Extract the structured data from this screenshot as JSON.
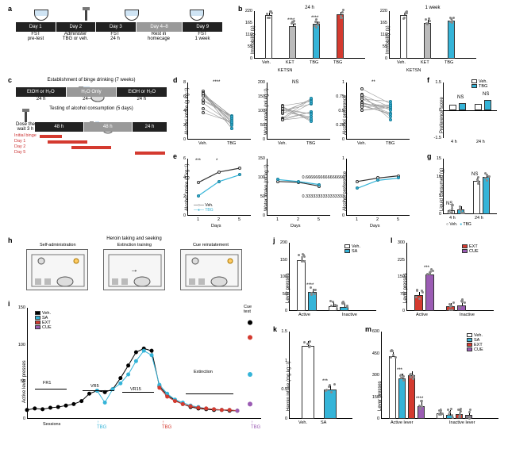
{
  "colors": {
    "vehicle": "#ffffff",
    "grey": "#bbbbbb",
    "tbg": "#35b4d8",
    "ket": "#bbbbbb",
    "red": "#d43a2f",
    "purple": "#9b5cb4",
    "black": "#000000",
    "sa_cyan": "#35b4d8"
  },
  "panel_a": {
    "label": "a",
    "timeline": [
      {
        "day": "Day 1",
        "caption": "FST\npre-test",
        "icon": "cup"
      },
      {
        "day": "Day 2",
        "caption": "Administer\nTBG or veh.",
        "icon": "syringe"
      },
      {
        "day": "Day 3",
        "caption": "FST\n24 h",
        "icon": "cup"
      },
      {
        "day": "Day 4–8",
        "caption": "Rest in\nhomecage",
        "icon": "none",
        "light": true
      },
      {
        "day": "Day 9",
        "caption": "FST\n1 week",
        "icon": "cup"
      }
    ]
  },
  "panel_b": {
    "label": "b",
    "ylabel": "Immobility (s)",
    "ymax": 220,
    "ytick": 55,
    "groups_24h": {
      "title": "24 h",
      "bars": [
        {
          "name": "Veh.",
          "value": 200,
          "color": "open",
          "sig": ""
        },
        {
          "name": "KET",
          "value": 150,
          "color": "grey",
          "sig": "****"
        },
        {
          "name": "TBG",
          "value": 160,
          "color": "cyan",
          "sig": "****"
        },
        {
          "name": "TBG",
          "value": 205,
          "color": "red",
          "sig": ""
        }
      ],
      "bottom": "KETSN"
    },
    "groups_1wk": {
      "title": "1 week",
      "bars": [
        {
          "name": "Veh.",
          "value": 200,
          "color": "open"
        },
        {
          "name": "KET",
          "value": 165,
          "color": "grey"
        },
        {
          "name": "TBG",
          "value": 175,
          "color": "cyan"
        }
      ],
      "bottom": "KETSN"
    }
  },
  "panel_c": {
    "label": "c",
    "title_top": "Establishment of binge drinking (7 weeks)",
    "row1": [
      {
        "box": "EtOH or H₂O",
        "sub": "24 h"
      },
      {
        "box": "H₂O Only",
        "sub": "24–48 h",
        "light": true
      },
      {
        "box": "EtOH or H₂O",
        "sub": "24 h"
      }
    ],
    "title_bottom": "Testing of alcohol consumption (5 days)",
    "row2_boxes": [
      "48 h",
      "48 h",
      "24 h"
    ],
    "dose_label": "Dose then\nwait 3 h",
    "binge_rows": [
      "Initial binge",
      "Day 1",
      "Day 2",
      "Day 5"
    ]
  },
  "panel_d": {
    "label": "d",
    "charts": [
      {
        "ylabel": "Alcohol intake (g kg⁻¹)",
        "ymax": 8,
        "sig": "****",
        "pairs": 15,
        "veh_mean": 5.2,
        "tbg_mean": 2.4
      },
      {
        "ylabel": "Water intake (ml kg⁻¹)",
        "ymax": 200,
        "sig": "NS",
        "pairs": 15,
        "veh_mean": 95,
        "tbg_mean": 105
      },
      {
        "ylabel": "Alcohol preference",
        "ymax": 1.0,
        "sig": "**",
        "pairs": 15,
        "veh_mean": 0.7,
        "tbg_mean": 0.48
      }
    ],
    "xlabels": [
      "Veh.",
      "TBG"
    ]
  },
  "panel_e": {
    "label": "e",
    "charts": [
      {
        "ylabel": "Alcohol intake (g kg⁻¹)",
        "ymax": 6,
        "xdays": [
          1,
          2,
          5
        ],
        "veh": [
          3.5,
          4.6,
          5.0
        ],
        "tbg": [
          2.1,
          3.6,
          4.3
        ],
        "sigs": [
          "***",
          "*",
          ""
        ]
      },
      {
        "ylabel": "Water intake (ml kg⁻¹)",
        "ymax": 150,
        "xdays": [
          1,
          2,
          5
        ],
        "veh": [
          90,
          88,
          78
        ],
        "tbg": [
          95,
          90,
          82
        ]
      },
      {
        "ylabel": "Alcohol preference",
        "ymax": 1.0,
        "xdays": [
          1,
          2,
          5
        ],
        "veh": [
          0.6,
          0.66,
          0.7
        ],
        "tbg": [
          0.48,
          0.62,
          0.66
        ]
      }
    ],
    "xlabel": "Days",
    "legend": [
      "Veh.",
      "TBG"
    ]
  },
  "panel_f": {
    "label": "f",
    "ylabel": "Preference score",
    "ymin": -1.5,
    "ymax": 1.5,
    "xlabels": [
      "4 h",
      "24 h"
    ],
    "bars": [
      {
        "x": "4 h",
        "group": "Veh.",
        "value": 0.3
      },
      {
        "x": "4 h",
        "group": "TBG",
        "value": 0.4,
        "sig": "NS"
      },
      {
        "x": "24 h",
        "group": "Veh.",
        "value": 0.35
      },
      {
        "x": "24 h",
        "group": "TBG",
        "value": 0.55,
        "sig": "NS"
      }
    ],
    "legend": [
      "Veh.",
      "TBG"
    ]
  },
  "panel_g": {
    "label": "g",
    "ylabel": "Liquid consumed (g)",
    "ymax": 15,
    "xlabels": [
      "4 h",
      "24 h"
    ],
    "bars": [
      {
        "x": "4 h",
        "group": "Veh.",
        "value": 1.0,
        "sig": "NS"
      },
      {
        "x": "4 h",
        "group": "TBG",
        "value": 1.2
      },
      {
        "x": "24 h",
        "group": "Veh.",
        "value": 9.0,
        "sig": "NS"
      },
      {
        "x": "24 h",
        "group": "TBG",
        "value": 10.0
      }
    ],
    "legend": [
      "Veh.",
      "TBG"
    ]
  },
  "panel_h": {
    "label": "h",
    "title": "Heroin taking and seeking",
    "stages": [
      "Self-administration",
      "Extinction training",
      "Cue reinstatement"
    ]
  },
  "panel_i": {
    "label": "i",
    "ylabel": "Active lever presses",
    "ymax": 150,
    "ytick": 50,
    "legend": [
      "Veh.",
      "SA",
      "EXT",
      "CUE"
    ],
    "phases": [
      "FR1",
      "VR5",
      "VR15",
      "Extinction"
    ],
    "cue_label": "Cue\ntest",
    "sessions_label": "Sessions",
    "tbg_marks": [
      "TBG",
      "TBG",
      "TBG"
    ],
    "veh_points": [
      12,
      14,
      13,
      15,
      16,
      18,
      20,
      24,
      34,
      38,
      36,
      40,
      55,
      72,
      90,
      95,
      92,
      44,
      32,
      25,
      20,
      16,
      14,
      13,
      12,
      12,
      11,
      11
    ],
    "sa_points": [
      null,
      null,
      null,
      null,
      null,
      null,
      null,
      null,
      null,
      38,
      22,
      40,
      48,
      60,
      78,
      92,
      86,
      46,
      34,
      26,
      22,
      18,
      16,
      14,
      13,
      12,
      12,
      11
    ],
    "ext_points": [
      null,
      null,
      null,
      null,
      null,
      null,
      null,
      null,
      null,
      null,
      null,
      null,
      null,
      null,
      null,
      null,
      null,
      42,
      30,
      24,
      20,
      17,
      15,
      14,
      13,
      12,
      12,
      11
    ],
    "cue_points": [
      null,
      null,
      null,
      null,
      null,
      null,
      null,
      null,
      null,
      null,
      null,
      null,
      null,
      null,
      null,
      null,
      null,
      null,
      null,
      null,
      null,
      null,
      null,
      null,
      null,
      null,
      null,
      11
    ],
    "cue_test": {
      "veh": 130,
      "sa": 60,
      "ext": 110,
      "cue": 20
    }
  },
  "panel_j": {
    "label": "j",
    "ylabel": "Lever presses",
    "ymax": 200,
    "xgroups": [
      "Active",
      "Inactive"
    ],
    "bars": [
      {
        "x": "Active",
        "group": "Veh.",
        "value": 150,
        "color": "open"
      },
      {
        "x": "Active",
        "group": "SA",
        "value": 55,
        "color": "cyan",
        "sig": "****"
      },
      {
        "x": "Inactive",
        "group": "Veh.",
        "value": 15,
        "color": "open"
      },
      {
        "x": "Inactive",
        "group": "SA",
        "value": 12,
        "color": "cyan"
      }
    ],
    "legend": [
      "Veh.",
      "SA"
    ]
  },
  "panel_k": {
    "label": "k",
    "ylabel": "Heroin intake (mg kg⁻¹)",
    "ymax": 1.5,
    "bars": [
      {
        "group": "Veh.",
        "value": 1.25,
        "color": "open"
      },
      {
        "group": "SA",
        "value": 0.5,
        "color": "cyan",
        "sig": "***"
      }
    ],
    "xgroups": [
      "Veh.",
      "SA"
    ]
  },
  "panel_l": {
    "label": "l",
    "ylabel": "Lever presses",
    "ymax": 300,
    "xgroups": [
      "Active",
      "Inactive"
    ],
    "bars": [
      {
        "x": "Active",
        "group": "EXT",
        "value": 70,
        "color": "red"
      },
      {
        "x": "Active",
        "group": "CUE",
        "value": 160,
        "color": "purple",
        "sig": "***"
      },
      {
        "x": "Inactive",
        "group": "EXT",
        "value": 20,
        "color": "red"
      },
      {
        "x": "Inactive",
        "group": "CUE",
        "value": 25,
        "color": "purple"
      }
    ],
    "legend": [
      "EXT",
      "CUE"
    ]
  },
  "panel_m": {
    "label": "m",
    "ylabel": "Lever presses",
    "ymax": 600,
    "xgroups": [
      "Active lever",
      "Inactive lever"
    ],
    "bars": [
      {
        "x": "Active",
        "group": "Veh.",
        "value": 430,
        "color": "open"
      },
      {
        "x": "Active",
        "group": "SA",
        "value": 280,
        "color": "cyan",
        "sig": "***"
      },
      {
        "x": "Active",
        "group": "EXT",
        "value": 300,
        "color": "red",
        "sig": ""
      },
      {
        "x": "Active",
        "group": "CUE",
        "value": 85,
        "color": "purple",
        "sig": "****"
      },
      {
        "x": "Inactive",
        "group": "Veh.",
        "value": 40,
        "color": "open"
      },
      {
        "x": "Inactive",
        "group": "SA",
        "value": 30,
        "color": "cyan"
      },
      {
        "x": "Inactive",
        "group": "EXT",
        "value": 35,
        "color": "red"
      },
      {
        "x": "Inactive",
        "group": "CUE",
        "value": 25,
        "color": "purple"
      }
    ],
    "legend": [
      "Veh.",
      "SA",
      "EXT",
      "CUE"
    ]
  }
}
